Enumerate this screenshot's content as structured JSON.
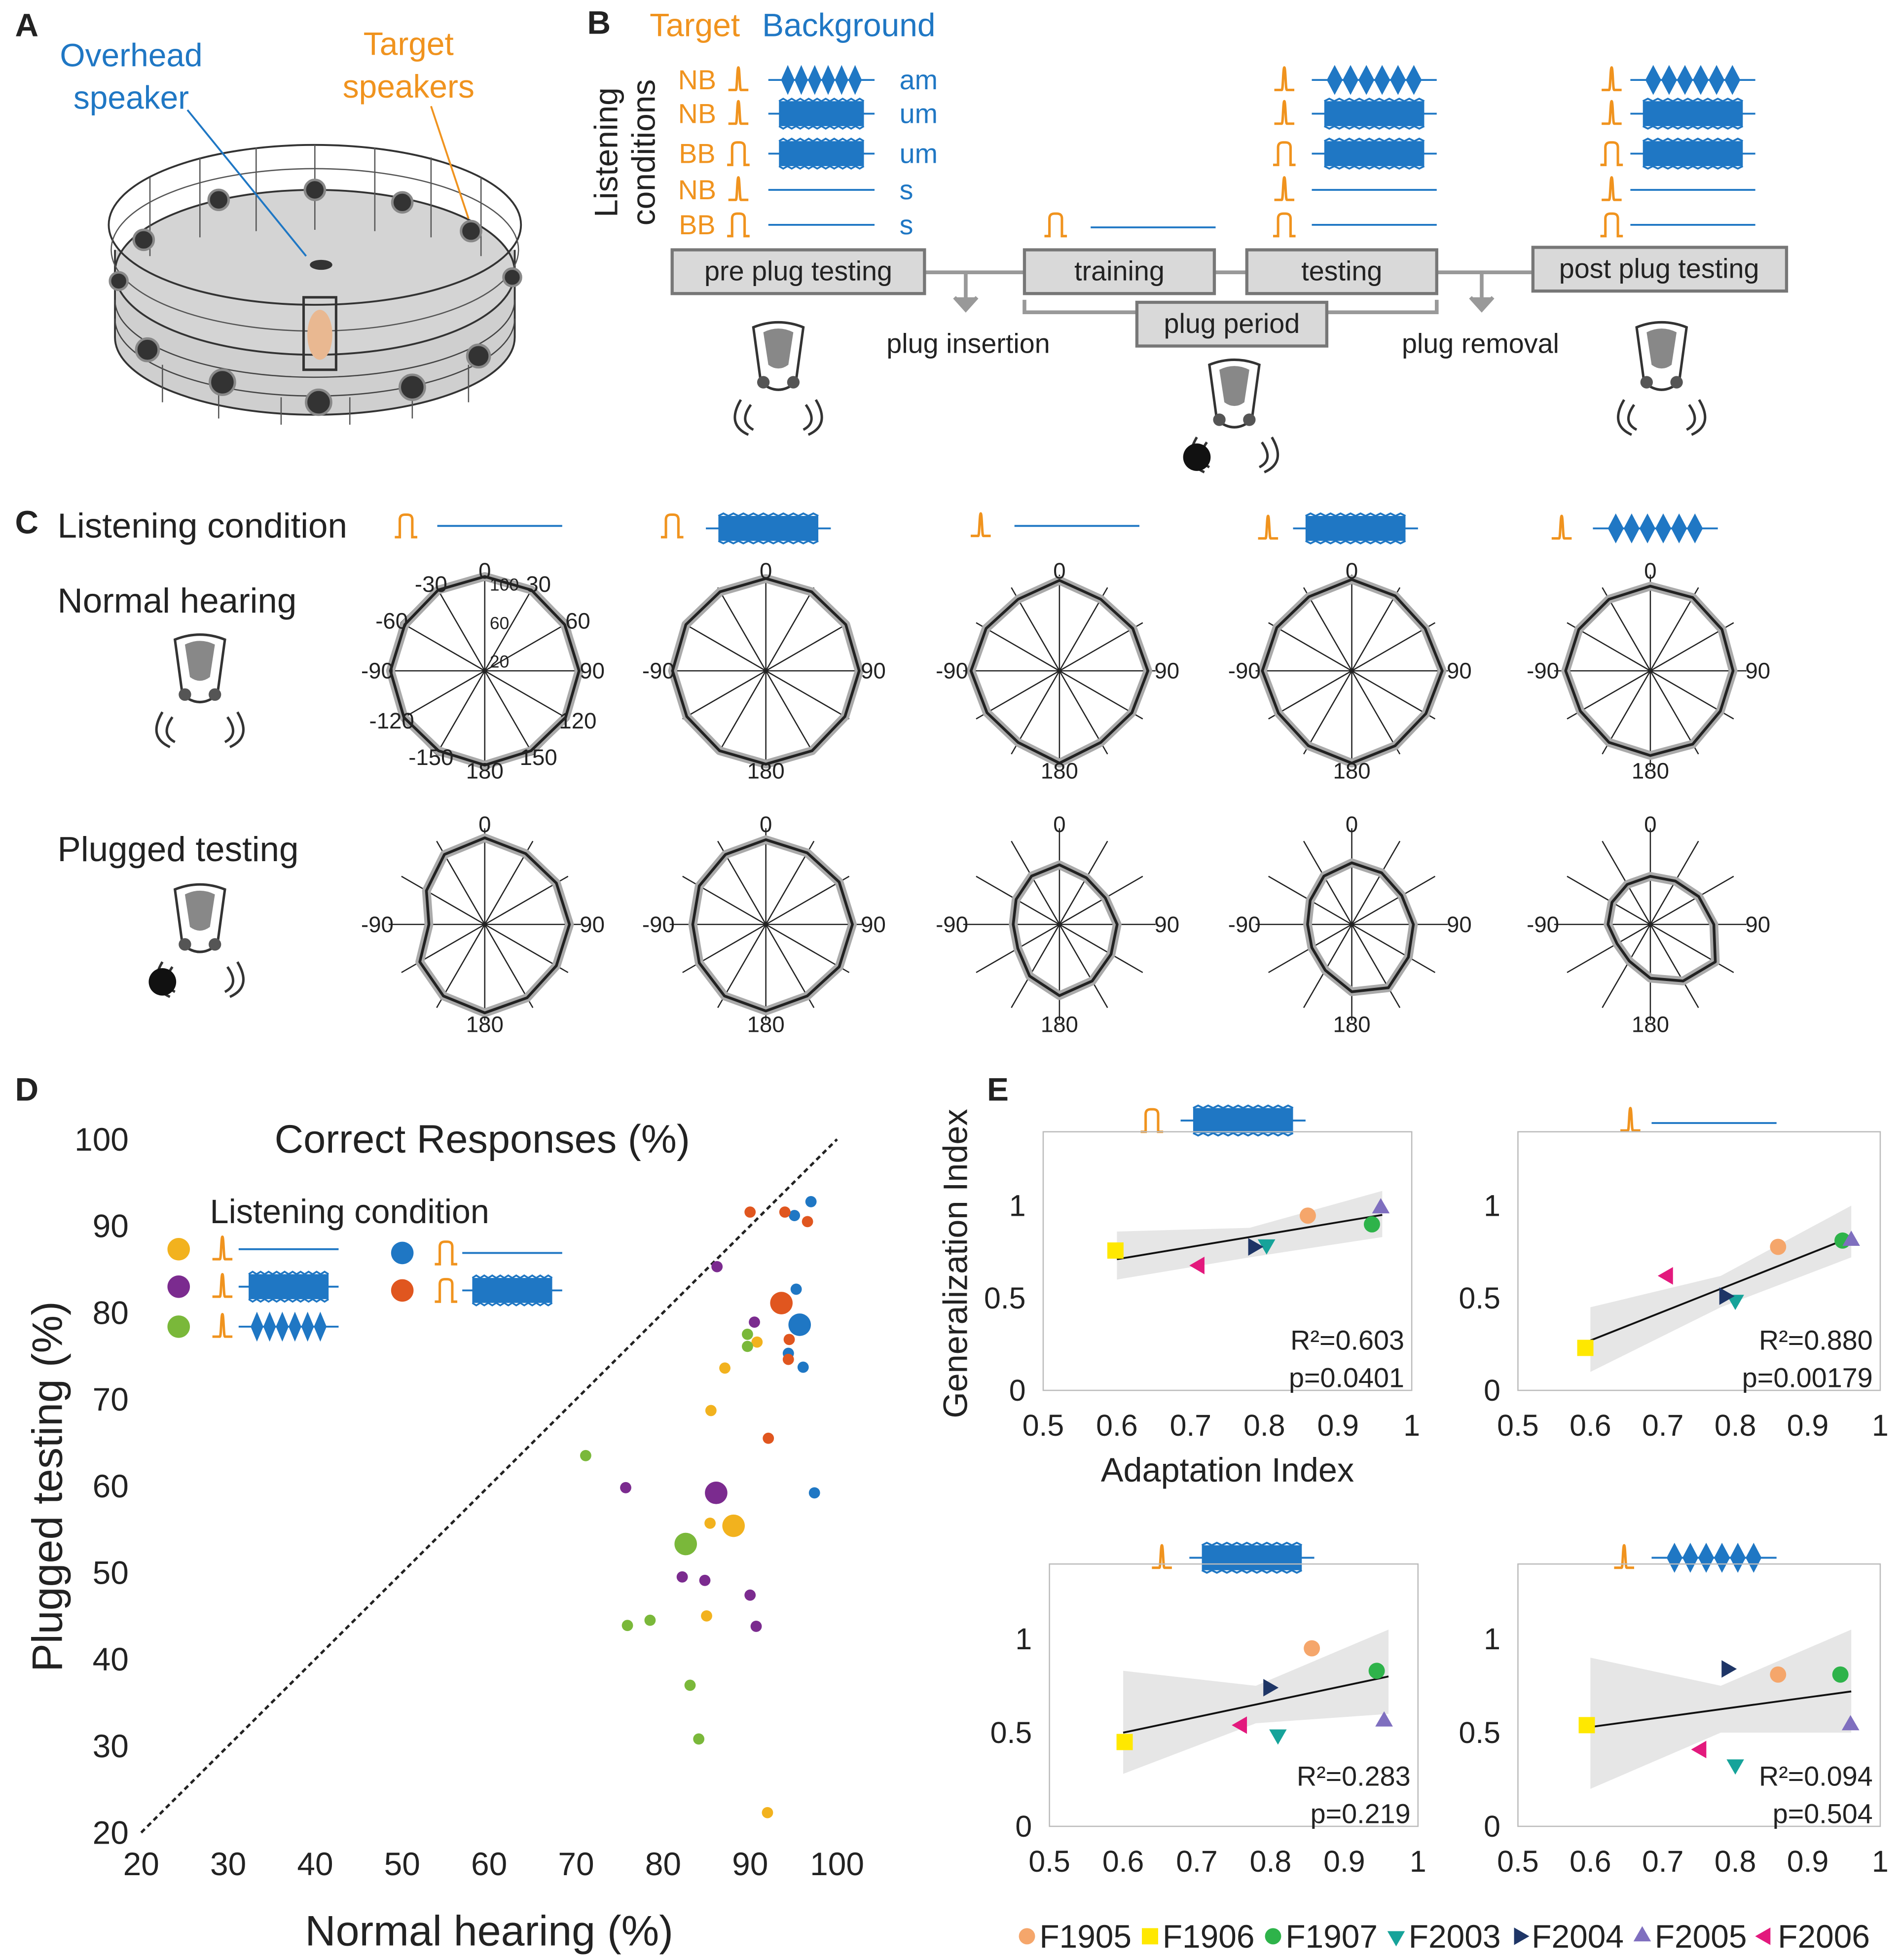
{
  "panel_labels": [
    "A",
    "B",
    "C",
    "D",
    "E"
  ],
  "panel_a": {
    "overhead_label": [
      "Overhead",
      "speaker"
    ],
    "target_label": [
      "Target",
      "speakers"
    ]
  },
  "panel_b": {
    "legend": [
      "Target",
      "Background"
    ],
    "y_label": [
      "Listening",
      "conditions"
    ],
    "conditions": [
      {
        "target": "NB",
        "background": "am"
      },
      {
        "target": "NB",
        "background": "um"
      },
      {
        "target": "BB",
        "background": "um"
      },
      {
        "target": "NB",
        "background": "s"
      },
      {
        "target": "BB",
        "background": "s"
      }
    ],
    "phases": [
      "pre plug testing",
      "training",
      "testing",
      "post plug testing"
    ],
    "plug_period": "plug period",
    "plug_insertion": "plug insertion",
    "plug_removal": "plug removal"
  },
  "panel_c": {
    "condition_label": "Listening condition",
    "rows": [
      "Normal hearing",
      "Plugged testing"
    ]
  },
  "panel_e": {
    "animals": [
      {
        "name": "F1905",
        "color": "#f5a66b",
        "marker": "circle"
      },
      {
        "name": "F1906",
        "color": "#ffe800",
        "marker": "square"
      },
      {
        "name": "F1907",
        "color": "#2eb34a",
        "marker": "circle"
      },
      {
        "name": "F2003",
        "color": "#16a39a",
        "marker": "triangle-down"
      },
      {
        "name": "F2004",
        "color": "#1e3566",
        "marker": "triangle-right"
      },
      {
        "name": "F2005",
        "color": "#7f6fbf",
        "marker": "triangle-up"
      },
      {
        "name": "F2006",
        "color": "#e3197d",
        "marker": "triangle-left"
      }
    ]
  },
  "chart_data": [
    {
      "type": "scatter",
      "title": "Correct Responses (%)",
      "xlabel": "Normal hearing (%)",
      "ylabel": "Plugged testing (%)",
      "xlim": [
        20,
        100
      ],
      "ylim": [
        20,
        100
      ],
      "xticks": [
        20,
        30,
        40,
        50,
        60,
        70,
        80,
        90,
        100
      ],
      "yticks": [
        20,
        30,
        40,
        50,
        60,
        70,
        80,
        90,
        100
      ],
      "identity_line": true,
      "legend_title": "Listening condition",
      "series": [
        {
          "color": "#f2b21e",
          "x": [
            87.1,
            85.5,
            90.8,
            85.4,
            85.0,
            92.0
          ],
          "y": [
            73.6,
            68.7,
            76.6,
            55.7,
            45.0,
            22.3
          ],
          "mean": {
            "x": 88.1,
            "y": 55.4
          }
        },
        {
          "color": "#7b2b8f",
          "x": [
            75.7,
            86.2,
            90.5,
            82.2,
            84.8,
            90.0,
            90.7
          ],
          "y": [
            59.8,
            85.3,
            78.9,
            49.5,
            49.1,
            47.4,
            43.8
          ],
          "mean": {
            "x": 86.1,
            "y": 59.2
          }
        },
        {
          "color": "#7ab83a",
          "x": [
            71.1,
            75.9,
            78.5,
            83.1,
            84.1,
            89.7,
            89.7
          ],
          "y": [
            63.5,
            43.9,
            44.5,
            37.0,
            30.8,
            77.5,
            76.1
          ],
          "mean": {
            "x": 82.6,
            "y": 53.3
          }
        },
        {
          "color": "#1f77c4",
          "x": [
            97.0,
            95.1,
            95.3,
            94.4,
            96.1,
            97.4
          ],
          "y": [
            92.8,
            91.2,
            82.7,
            75.3,
            73.7,
            59.2
          ],
          "mean": {
            "x": 95.7,
            "y": 78.6
          }
        },
        {
          "color": "#e0561f",
          "x": [
            90.0,
            94.0,
            96.6,
            94.4,
            94.5,
            92.1
          ],
          "y": [
            91.6,
            91.6,
            90.5,
            74.6,
            76.9,
            65.5
          ],
          "mean": {
            "x": 93.6,
            "y": 81.1
          }
        }
      ]
    },
    {
      "type": "scatter",
      "xlabel": "Adaptation Index",
      "ylabel": "Generalization Index",
      "xlim": [
        0.5,
        1
      ],
      "ylim": [
        0,
        1.4
      ],
      "xticks": [
        0.5,
        0.6,
        0.7,
        0.8,
        0.9,
        1
      ],
      "yticks": [
        0,
        0.5,
        1
      ],
      "x": [
        0.859,
        0.598,
        0.946,
        0.803,
        0.785,
        0.958,
        0.712
      ],
      "y": [
        0.946,
        0.757,
        0.899,
        0.79,
        0.777,
        0.986,
        0.676
      ],
      "fit": {
        "x": [
          0.6,
          0.96
        ],
        "y": [
          0.71,
          0.95
        ]
      },
      "band": {
        "x": [
          0.6,
          0.78,
          0.96
        ],
        "lower": [
          0.6,
          0.72,
          0.83
        ],
        "upper": [
          0.86,
          0.88,
          1.08
        ]
      },
      "annotations": [
        "R²=0.603",
        "p=0.0401"
      ]
    },
    {
      "type": "scatter",
      "xlim": [
        0.5,
        1
      ],
      "ylim": [
        0,
        1.4
      ],
      "xticks": [
        0.5,
        0.6,
        0.7,
        0.8,
        0.9,
        1
      ],
      "yticks": [
        0,
        0.5,
        1
      ],
      "x": [
        0.859,
        0.593,
        0.948,
        0.8,
        0.785,
        0.96,
        0.707
      ],
      "y": [
        0.777,
        0.23,
        0.811,
        0.49,
        0.51,
        0.81,
        0.62
      ],
      "fit": {
        "x": [
          0.6,
          0.96
        ],
        "y": [
          0.27,
          0.83
        ]
      },
      "band": {
        "x": [
          0.6,
          0.78,
          0.96
        ],
        "lower": [
          0.1,
          0.45,
          0.72
        ],
        "upper": [
          0.45,
          0.62,
          1.0
        ]
      },
      "annotations": [
        "R²=0.880",
        "p=0.00179"
      ]
    },
    {
      "type": "scatter",
      "xlim": [
        0.5,
        1
      ],
      "ylim": [
        0,
        1.4
      ],
      "xticks": [
        0.5,
        0.6,
        0.7,
        0.8,
        0.9,
        1
      ],
      "yticks": [
        0,
        0.5,
        1
      ],
      "x": [
        0.856,
        0.602,
        0.944,
        0.81,
        0.797,
        0.954,
        0.761
      ],
      "y": [
        0.95,
        0.45,
        0.83,
        0.49,
        0.74,
        0.56,
        0.54
      ],
      "fit": {
        "x": [
          0.6,
          0.96
        ],
        "y": [
          0.5,
          0.8
        ]
      },
      "band": {
        "x": [
          0.6,
          0.78,
          0.96
        ],
        "lower": [
          0.28,
          0.55,
          0.6
        ],
        "upper": [
          0.83,
          0.75,
          1.05
        ]
      },
      "annotations": [
        "R²=0.283",
        "p=0.219"
      ]
    },
    {
      "type": "scatter",
      "xlim": [
        0.5,
        1
      ],
      "ylim": [
        0,
        1.4
      ],
      "xticks": [
        0.5,
        0.6,
        0.7,
        0.8,
        0.9,
        1
      ],
      "yticks": [
        0,
        0.5,
        1
      ],
      "x": [
        0.859,
        0.595,
        0.945,
        0.8,
        0.788,
        0.959,
        0.753
      ],
      "y": [
        0.81,
        0.54,
        0.81,
        0.33,
        0.84,
        0.54,
        0.41
      ],
      "fit": {
        "x": [
          0.6,
          0.96
        ],
        "y": [
          0.53,
          0.72
        ]
      },
      "band": {
        "x": [
          0.6,
          0.78,
          0.96
        ],
        "lower": [
          0.2,
          0.5,
          0.5
        ],
        "upper": [
          0.9,
          0.75,
          1.05
        ]
      },
      "annotations": [
        "R²=0.094",
        "p=0.504"
      ]
    },
    {
      "type": "polar",
      "frame": true,
      "rlim": [
        0,
        100
      ],
      "rticks": [
        20,
        60,
        100
      ],
      "theta": [
        0,
        30,
        60,
        90,
        120,
        150,
        180,
        -150,
        -120,
        -90,
        -60,
        -30
      ],
      "theta_ticks": [
        0,
        30,
        60,
        90,
        120,
        150,
        180,
        -150,
        -120,
        -90,
        -60,
        -30
      ],
      "values": [
        98,
        97,
        96,
        98,
        97,
        96,
        98,
        96,
        97,
        98,
        96,
        97
      ]
    },
    {
      "type": "polar",
      "rlim": [
        0,
        100
      ],
      "theta": [
        0,
        30,
        60,
        90,
        120,
        150,
        180,
        -150,
        -120,
        -90,
        -60,
        -30
      ],
      "theta_ticks": [
        0,
        90,
        180,
        -90
      ],
      "values": [
        96,
        95,
        96,
        97,
        95,
        96,
        97,
        96,
        95,
        97,
        96,
        95
      ]
    },
    {
      "type": "polar",
      "rlim": [
        0,
        100
      ],
      "theta": [
        0,
        30,
        60,
        90,
        120,
        150,
        180,
        -150,
        -120,
        -90,
        -60,
        -30
      ],
      "theta_ticks": [
        0,
        90,
        180,
        -90
      ],
      "values": [
        94,
        86,
        88,
        92,
        87,
        86,
        96,
        86,
        87,
        92,
        88,
        86
      ]
    },
    {
      "type": "polar",
      "rlim": [
        0,
        100
      ],
      "theta": [
        0,
        30,
        60,
        90,
        120,
        150,
        180,
        -150,
        -120,
        -90,
        -60,
        -30
      ],
      "theta_ticks": [
        0,
        90,
        180,
        -90
      ],
      "values": [
        95,
        90,
        88,
        94,
        89,
        90,
        96,
        90,
        88,
        93,
        90,
        89
      ]
    },
    {
      "type": "polar",
      "rlim": [
        0,
        100
      ],
      "theta": [
        0,
        30,
        60,
        90,
        120,
        150,
        180,
        -150,
        -120,
        -90,
        -60,
        -30
      ],
      "theta_ticks": [
        0,
        90,
        180,
        -90
      ],
      "values": [
        88,
        88,
        86,
        86,
        84,
        88,
        88,
        86,
        84,
        88,
        86,
        86
      ]
    },
    {
      "type": "polar",
      "rlim": [
        0,
        100
      ],
      "theta": [
        0,
        30,
        60,
        90,
        120,
        150,
        180,
        -150,
        -120,
        -90,
        -60,
        -30
      ],
      "theta_ticks": [
        0,
        90,
        180,
        -90
      ],
      "values": [
        90,
        85,
        86,
        88,
        86,
        88,
        92,
        86,
        78,
        58,
        70,
        84
      ]
    },
    {
      "type": "polar",
      "rlim": [
        0,
        100
      ],
      "theta": [
        0,
        30,
        60,
        90,
        120,
        150,
        180,
        -150,
        -120,
        -90,
        -60,
        -30
      ],
      "theta_ticks": [
        0,
        90,
        180,
        -90
      ],
      "values": [
        88,
        86,
        88,
        90,
        88,
        86,
        90,
        86,
        80,
        76,
        80,
        84
      ]
    },
    {
      "type": "polar",
      "rlim": [
        0,
        100
      ],
      "theta": [
        0,
        30,
        60,
        90,
        120,
        150,
        180,
        -150,
        -120,
        -90,
        -60,
        -30
      ],
      "theta_ticks": [
        0,
        90,
        180,
        -90
      ],
      "values": [
        62,
        56,
        55,
        60,
        62,
        68,
        74,
        62,
        50,
        48,
        52,
        58
      ]
    },
    {
      "type": "polar",
      "rlim": [
        0,
        100
      ],
      "theta": [
        0,
        30,
        60,
        90,
        120,
        150,
        180,
        -150,
        -120,
        -90,
        -60,
        -30
      ],
      "theta_ticks": [
        0,
        90,
        180,
        -90
      ],
      "values": [
        64,
        62,
        60,
        64,
        68,
        76,
        70,
        55,
        48,
        46,
        50,
        58
      ]
    },
    {
      "type": "polar",
      "rlim": [
        0,
        100
      ],
      "theta": [
        0,
        30,
        60,
        90,
        120,
        150,
        180,
        -150,
        -120,
        -90,
        -60,
        -30
      ],
      "theta_ticks": [
        0,
        90,
        180,
        -90
      ],
      "values": [
        50,
        52,
        58,
        66,
        78,
        68,
        56,
        44,
        40,
        44,
        46,
        48
      ]
    }
  ]
}
